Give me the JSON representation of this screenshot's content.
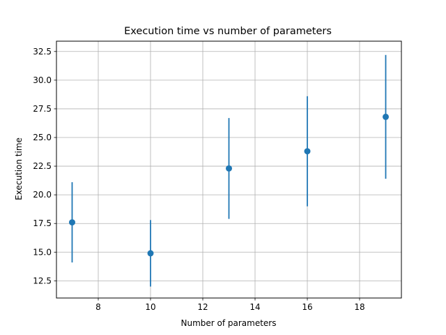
{
  "chart_data": {
    "type": "scatter",
    "title": "Execution time vs number of parameters",
    "xlabel": "Number of parameters",
    "ylabel": "Execution time",
    "xlim": [
      6.4,
      19.6
    ],
    "ylim": [
      11.0,
      33.4
    ],
    "xticks": [
      8,
      10,
      12,
      14,
      16,
      18
    ],
    "xtick_labels": [
      "8",
      "10",
      "12",
      "14",
      "16",
      "18"
    ],
    "yticks": [
      12.5,
      15.0,
      17.5,
      20.0,
      22.5,
      25.0,
      27.5,
      30.0,
      32.5
    ],
    "ytick_labels": [
      "12.5",
      "15.0",
      "17.5",
      "20.0",
      "22.5",
      "25.0",
      "27.5",
      "30.0",
      "32.5"
    ],
    "grid": true,
    "color": "#1f77b4",
    "points": [
      {
        "x": 7,
        "y": 17.6,
        "yerr": 3.5
      },
      {
        "x": 10,
        "y": 14.9,
        "yerr": 2.9
      },
      {
        "x": 13,
        "y": 22.3,
        "yerr": 4.4
      },
      {
        "x": 16,
        "y": 23.8,
        "yerr": 4.8
      },
      {
        "x": 19,
        "y": 26.8,
        "yerr": 5.4
      }
    ]
  }
}
